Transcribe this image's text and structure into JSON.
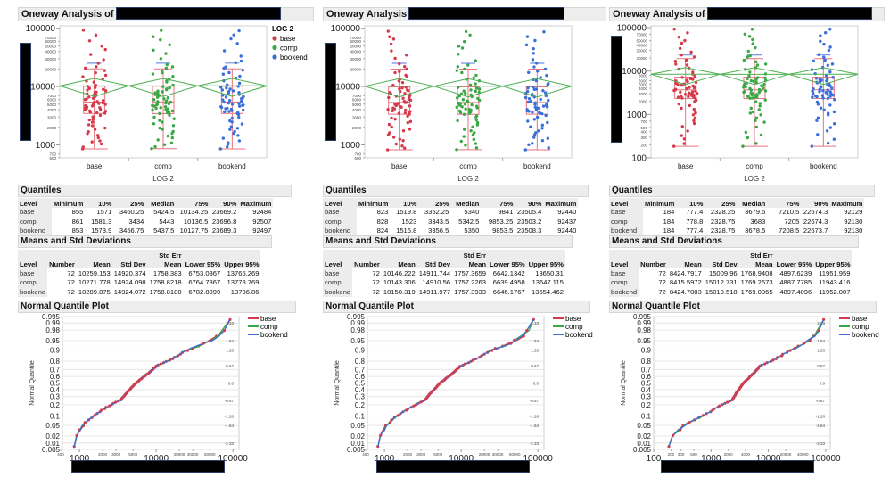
{
  "colors": {
    "base": "#d63a4a",
    "comp": "#3aa845",
    "bookend": "#3b6fd9",
    "box": "#e8737f",
    "diamond": "#4caf50",
    "sd_marker": "#6b8ee8"
  },
  "legend": {
    "title": "LOG 2",
    "items": [
      "base",
      "comp",
      "bookend"
    ]
  },
  "section_titles": {
    "quantiles": "Quantiles",
    "means": "Means and Std Deviations",
    "nq": "Normal Quantile Plot"
  },
  "quantile_headers": [
    "Level",
    "Minimum",
    "10%",
    "25%",
    "Median",
    "75%",
    "90%",
    "Maximum"
  ],
  "means_headers_top": [
    "",
    "",
    "",
    "",
    "Std Err",
    "",
    ""
  ],
  "means_headers": [
    "Level",
    "Number",
    "Mean",
    "Std Dev",
    "Mean",
    "Lower 95%",
    "Upper 95%"
  ],
  "nq_ylabel": "Normal Quantile",
  "nq_prob_ticks": [
    "0.995",
    "0.99",
    "0.98",
    "0.95",
    "0.9",
    "0.8",
    "0.7",
    "0.6",
    "0.5",
    "0.4",
    "0.3",
    "0.2",
    "0.1",
    "0.05",
    "0.02",
    "0.01",
    "0.005"
  ],
  "nq_z_ticks": [
    "2.33",
    "1.64",
    "1.28",
    "0.67",
    "0.0",
    "-0.67",
    "-1.28",
    "-1.64",
    "-2.33"
  ],
  "panels": [
    {
      "title": "Oneway Analysis of",
      "x_axis_label": "LOG 2",
      "categories": [
        "base",
        "comp",
        "bookend"
      ],
      "oneway_ylim": [
        600,
        110000
      ],
      "oneway_major_ticks": [
        "1000",
        "10000",
        "100000"
      ],
      "oneway_minor_ticks": [
        "600",
        "700",
        "2000",
        "3000",
        "4000",
        "5000",
        "6000",
        "7000",
        "20000",
        "30000",
        "40000",
        "50000",
        "60000",
        "70000"
      ],
      "nq_xlim": [
        600,
        120000
      ],
      "nq_major_ticks": [
        "1000",
        "10000",
        "100000"
      ],
      "nq_minor_ticks": [
        "400",
        "2000",
        "3000",
        "5000",
        "20000",
        "30000",
        "50000"
      ],
      "quantiles": [
        [
          "base",
          "855",
          "1571",
          "3460.25",
          "5424.5",
          "10134.25",
          "23669.2",
          "92484"
        ],
        [
          "comp",
          "861",
          "1581.3",
          "3434",
          "5443",
          "10136.5",
          "23696.8",
          "92507"
        ],
        [
          "bookend",
          "853",
          "1573.9",
          "3456.75",
          "5437.5",
          "10127.75",
          "23689.3",
          "92497"
        ]
      ],
      "means": [
        [
          "base",
          "72",
          "10259.153",
          "14920.374",
          "1758.383",
          "6753.0367",
          "13765.269"
        ],
        [
          "comp",
          "72",
          "10271.778",
          "14924.098",
          "1758.8218",
          "6764.7867",
          "13778.769"
        ],
        [
          "bookend",
          "72",
          "10289.875",
          "14924.072",
          "1758.8188",
          "6782.8899",
          "13796.86"
        ]
      ]
    },
    {
      "title": "Oneway Analysis",
      "x_axis_label": "LOG 2",
      "categories": [
        "base",
        "comp",
        "bookend"
      ],
      "oneway_ylim": [
        600,
        110000
      ],
      "oneway_major_ticks": [
        "1000",
        "10000",
        "100000"
      ],
      "oneway_minor_ticks": [
        "600",
        "700",
        "2000",
        "3000",
        "4000",
        "5000",
        "6000",
        "7000",
        "20000",
        "30000",
        "40000",
        "50000",
        "60000",
        "70000"
      ],
      "nq_xlim": [
        600,
        120000
      ],
      "nq_major_ticks": [
        "1000",
        "10000",
        "100000"
      ],
      "nq_minor_ticks": [
        "400",
        "2000",
        "3000",
        "5000",
        "20000",
        "30000",
        "50000"
      ],
      "quantiles": [
        [
          "base",
          "823",
          "1519.8",
          "3352.25",
          "5340",
          "9841",
          "23505.4",
          "92440"
        ],
        [
          "comp",
          "828",
          "1523",
          "3343.5",
          "5342.5",
          "9853.25",
          "23503.2",
          "92437"
        ],
        [
          "bookend",
          "824",
          "1516.8",
          "3356.5",
          "5350",
          "9853.5",
          "23508.3",
          "92440"
        ]
      ],
      "means": [
        [
          "base",
          "72",
          "10146.222",
          "14911.744",
          "1757.3659",
          "6642.1342",
          "13650.31"
        ],
        [
          "comp",
          "72",
          "10143.306",
          "14910.56",
          "1757.2263",
          "6639.4958",
          "13647.115"
        ],
        [
          "bookend",
          "72",
          "10150.319",
          "14911.977",
          "1757.3933",
          "6646.1767",
          "13654.462"
        ]
      ]
    },
    {
      "title": "Oneway Analysis of",
      "x_axis_label": "LOG 2",
      "categories": [
        "base",
        "comp",
        "bookend"
      ],
      "oneway_ylim": [
        100,
        110000
      ],
      "oneway_major_ticks": [
        "100",
        "1000",
        "10000",
        "100000"
      ],
      "oneway_minor_ticks": [
        "200",
        "300",
        "400",
        "500",
        "700",
        "2000",
        "3000",
        "4000",
        "5000",
        "6000",
        "8000",
        "20000",
        "30000",
        "40000",
        "50000",
        "70000"
      ],
      "nq_xlim": [
        100,
        120000
      ],
      "nq_major_ticks": [
        "100",
        "1000",
        "10000",
        "100000"
      ],
      "nq_minor_ticks": [
        "200",
        "300",
        "500",
        "2000",
        "4000",
        "20000",
        "40000"
      ],
      "quantiles": [
        [
          "base",
          "184",
          "777.4",
          "2328.25",
          "3679.5",
          "7210.5",
          "22674.3",
          "92129"
        ],
        [
          "comp",
          "184",
          "778.8",
          "2328.75",
          "3683",
          "7205",
          "22674.3",
          "92130"
        ],
        [
          "bookend",
          "184",
          "777.4",
          "2328.75",
          "3678.5",
          "7208.5",
          "22673.7",
          "92130"
        ]
      ],
      "means": [
        [
          "base",
          "72",
          "8424.7917",
          "15009.96",
          "1768.9408",
          "4897.6239",
          "11951.959"
        ],
        [
          "comp",
          "72",
          "8415.5972",
          "15012.731",
          "1769.2673",
          "4887.7785",
          "11943.416"
        ],
        [
          "bookend",
          "72",
          "8424.7083",
          "15010.518",
          "1769.0065",
          "4897.4096",
          "11952.007"
        ]
      ]
    }
  ]
}
